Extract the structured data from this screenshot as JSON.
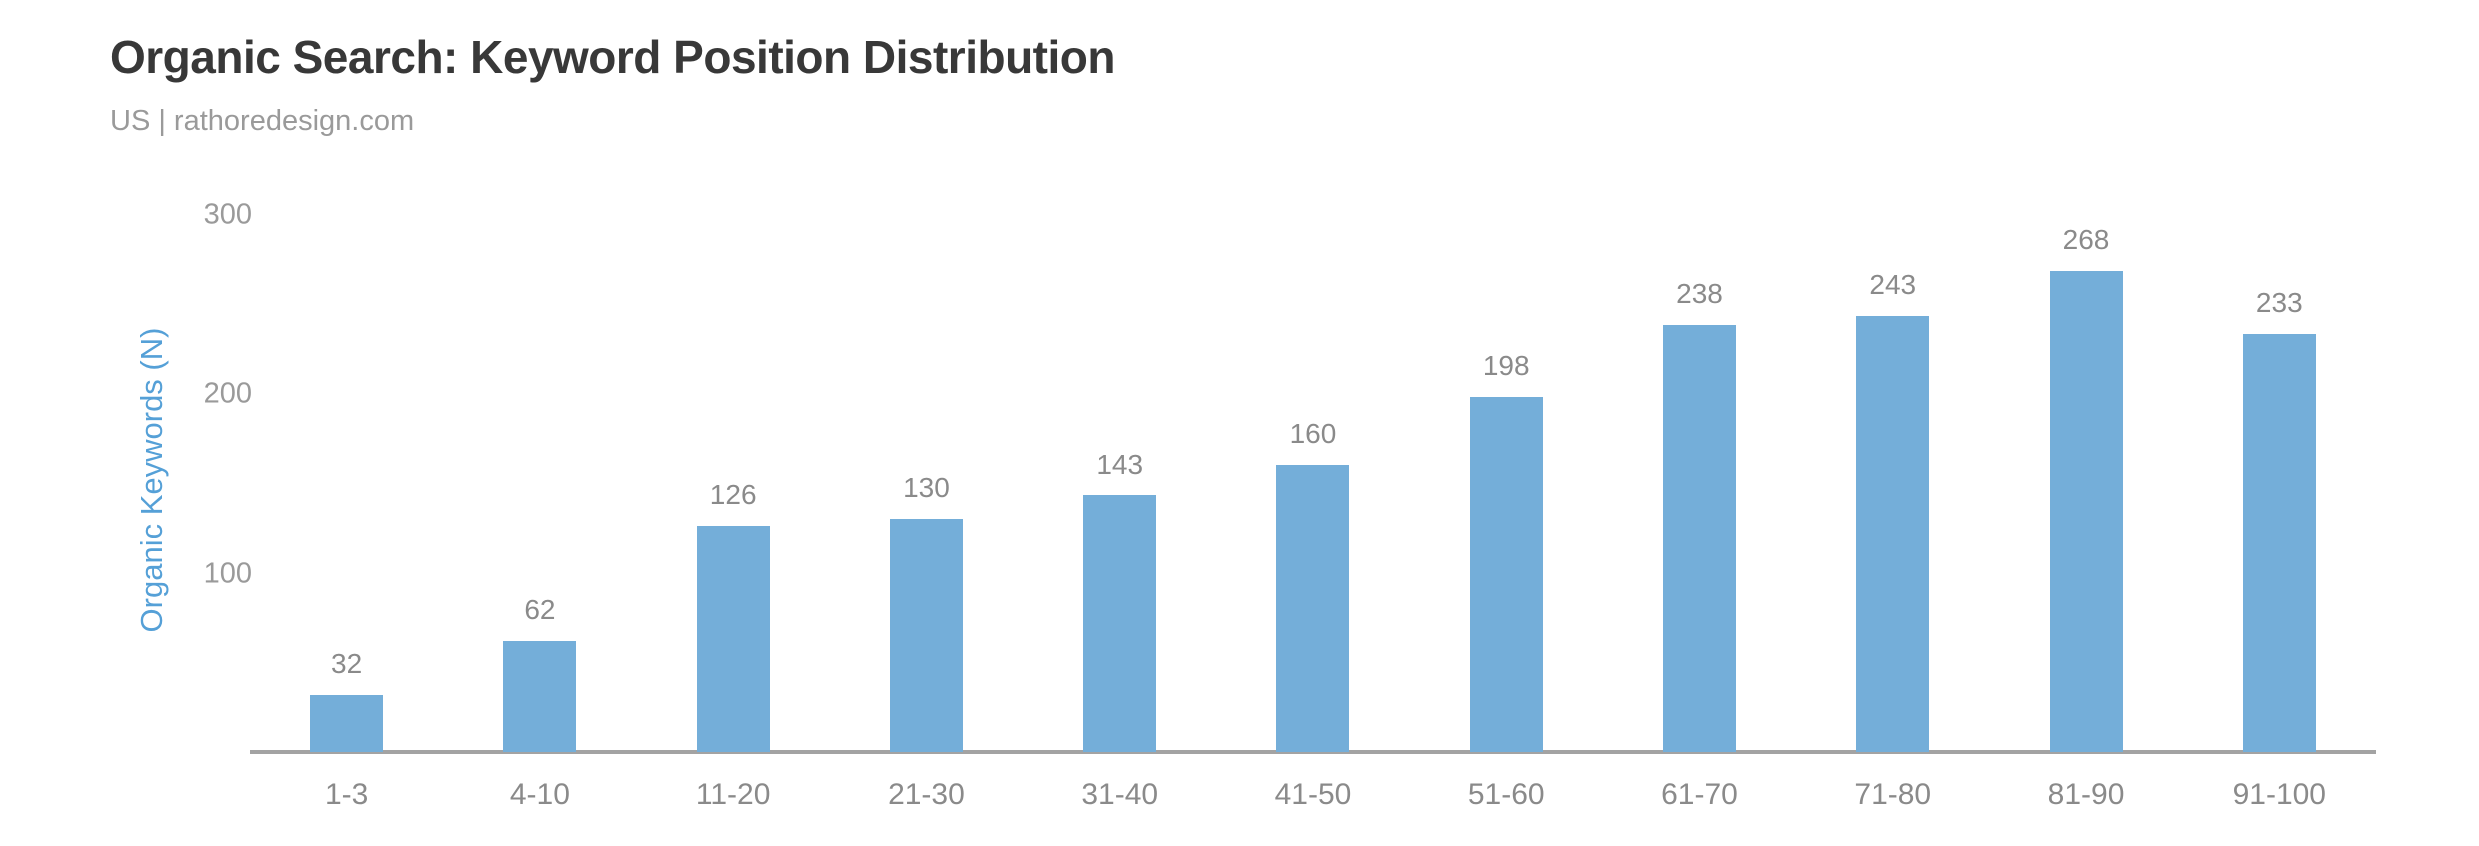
{
  "header": {
    "title": "Organic Search: Keyword Position Distribution",
    "subtitle": "US | rathoredesign.com"
  },
  "chart_data": {
    "type": "bar",
    "title": "Organic Search: Keyword Position Distribution",
    "subtitle": "US | rathoredesign.com",
    "categories": [
      "1-3",
      "4-10",
      "11-20",
      "21-30",
      "31-40",
      "41-50",
      "51-60",
      "61-70",
      "71-80",
      "81-90",
      "91-100"
    ],
    "values": [
      32,
      62,
      126,
      130,
      143,
      160,
      198,
      238,
      243,
      268,
      233
    ],
    "xlabel": "",
    "ylabel": "Organic Keywords (N)",
    "ylim": [
      0,
      300
    ],
    "yticks": [
      100,
      200,
      300
    ],
    "grid": false,
    "legend": "none",
    "data_labels": true,
    "colors": {
      "bar": "#74AED9",
      "ylabel_text": "#55A0D7",
      "title_text": "#383838",
      "subtitle_text": "#9A9A9A",
      "tick_text": "#9A9A9A",
      "value_label_text": "#8A8A8A",
      "axis_line": "#A3A3A3",
      "background": "#FFFFFF"
    }
  }
}
